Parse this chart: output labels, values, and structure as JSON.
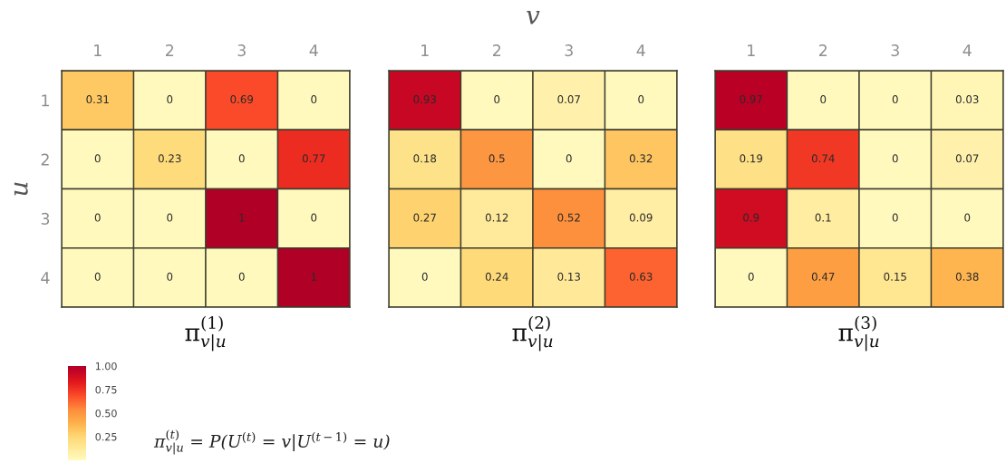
{
  "chart_data": [
    {
      "type": "heatmap",
      "title": "π$^{(1)}$$_{v|u}$",
      "ylabel": "u",
      "categories": [
        "1",
        "2",
        "3",
        "4"
      ],
      "y_categories": [
        "1",
        "2",
        "3",
        "4"
      ],
      "cells": [
        [
          0.31,
          0,
          0.69,
          0
        ],
        [
          0,
          0.23,
          0,
          0.77
        ],
        [
          0,
          0,
          1,
          0
        ],
        [
          0,
          0,
          0,
          1
        ]
      ],
      "clim": [
        0,
        1
      ],
      "cticks": [
        {
          "value": 0.25,
          "label": "0.25"
        },
        {
          "value": 0.5,
          "label": "0.50"
        },
        {
          "value": 0.75,
          "label": "0.75"
        },
        {
          "value": 1,
          "label": "1.00"
        }
      ],
      "data_labels": true,
      "annotations": [
        "π$^{(t)}$$_{v|u}$ = P(U$^{(t)}$ = v|U$^{(t−1)}$ = u)"
      ]
    },
    {
      "type": "heatmap",
      "title": "π$^{(2)}$$_{v|u}$",
      "xlabel": "v",
      "categories": [
        "1",
        "2",
        "3",
        "4"
      ],
      "y_categories": [
        "1",
        "2",
        "3",
        "4"
      ],
      "cells": [
        [
          0.93,
          0,
          0.07,
          0
        ],
        [
          0.18,
          0.5,
          0,
          0.32
        ],
        [
          0.27,
          0.12,
          0.52,
          0.09
        ],
        [
          0,
          0.24,
          0.13,
          0.63
        ]
      ],
      "data_labels": true,
      "tick_labels": "x"
    },
    {
      "type": "heatmap",
      "title": "π$^{(3)}$$_{v|u}$",
      "categories": [
        "1",
        "2",
        "3",
        "4"
      ],
      "y_categories": [
        "1",
        "2",
        "3",
        "4"
      ],
      "cells": [
        [
          0.97,
          0,
          0,
          0.03
        ],
        [
          0.19,
          0.74,
          0,
          0.07
        ],
        [
          0.9,
          0.1,
          0,
          0
        ],
        [
          0,
          0.47,
          0.15,
          0.38
        ]
      ],
      "data_labels": true,
      "tick_labels": "x"
    }
  ]
}
